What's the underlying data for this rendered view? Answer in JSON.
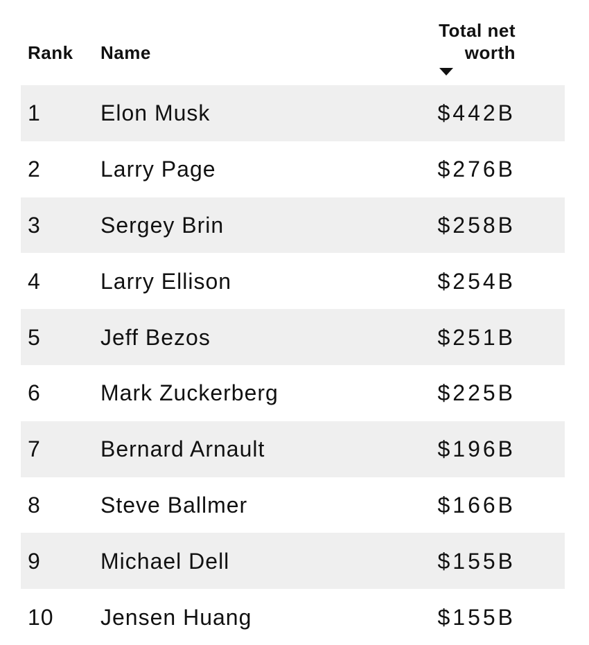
{
  "table": {
    "header": {
      "rank_label": "Rank",
      "name_label": "Name",
      "worth_label": "Total net worth",
      "sort_icon": "triangle-down",
      "sort_state": "descending"
    },
    "rows": [
      {
        "rank": "1",
        "name": "Elon Musk",
        "worth": "$442B"
      },
      {
        "rank": "2",
        "name": "Larry Page",
        "worth": "$276B"
      },
      {
        "rank": "3",
        "name": "Sergey Brin",
        "worth": "$258B"
      },
      {
        "rank": "4",
        "name": "Larry Ellison",
        "worth": "$254B"
      },
      {
        "rank": "5",
        "name": "Jeff Bezos",
        "worth": "$251B"
      },
      {
        "rank": "6",
        "name": "Mark Zuckerberg",
        "worth": "$225B"
      },
      {
        "rank": "7",
        "name": "Bernard Arnault",
        "worth": "$196B"
      },
      {
        "rank": "8",
        "name": "Steve Ballmer",
        "worth": "$166B"
      },
      {
        "rank": "9",
        "name": "Michael Dell",
        "worth": "$155B"
      },
      {
        "rank": "10",
        "name": "Jensen Huang",
        "worth": "$155B"
      }
    ]
  },
  "chart_data": {
    "type": "table",
    "columns": [
      "Rank",
      "Name",
      "Total net worth"
    ],
    "sorted_by": "Total net worth",
    "sort_direction": "descending",
    "names": [
      "Elon Musk",
      "Larry Page",
      "Sergey Brin",
      "Larry Ellison",
      "Jeff Bezos",
      "Mark Zuckerberg",
      "Bernard Arnault",
      "Steve Ballmer",
      "Michael Dell",
      "Jensen Huang"
    ],
    "ranks": [
      1,
      2,
      3,
      4,
      5,
      6,
      7,
      8,
      9,
      10
    ],
    "net_worth_billions_usd": [
      442,
      276,
      258,
      254,
      251,
      225,
      196,
      166,
      155,
      155
    ],
    "value_unit": "USD billions",
    "value_format": "$NNNB"
  },
  "colors": {
    "stripe": "#efefef",
    "background": "#ffffff",
    "text": "#111111"
  }
}
